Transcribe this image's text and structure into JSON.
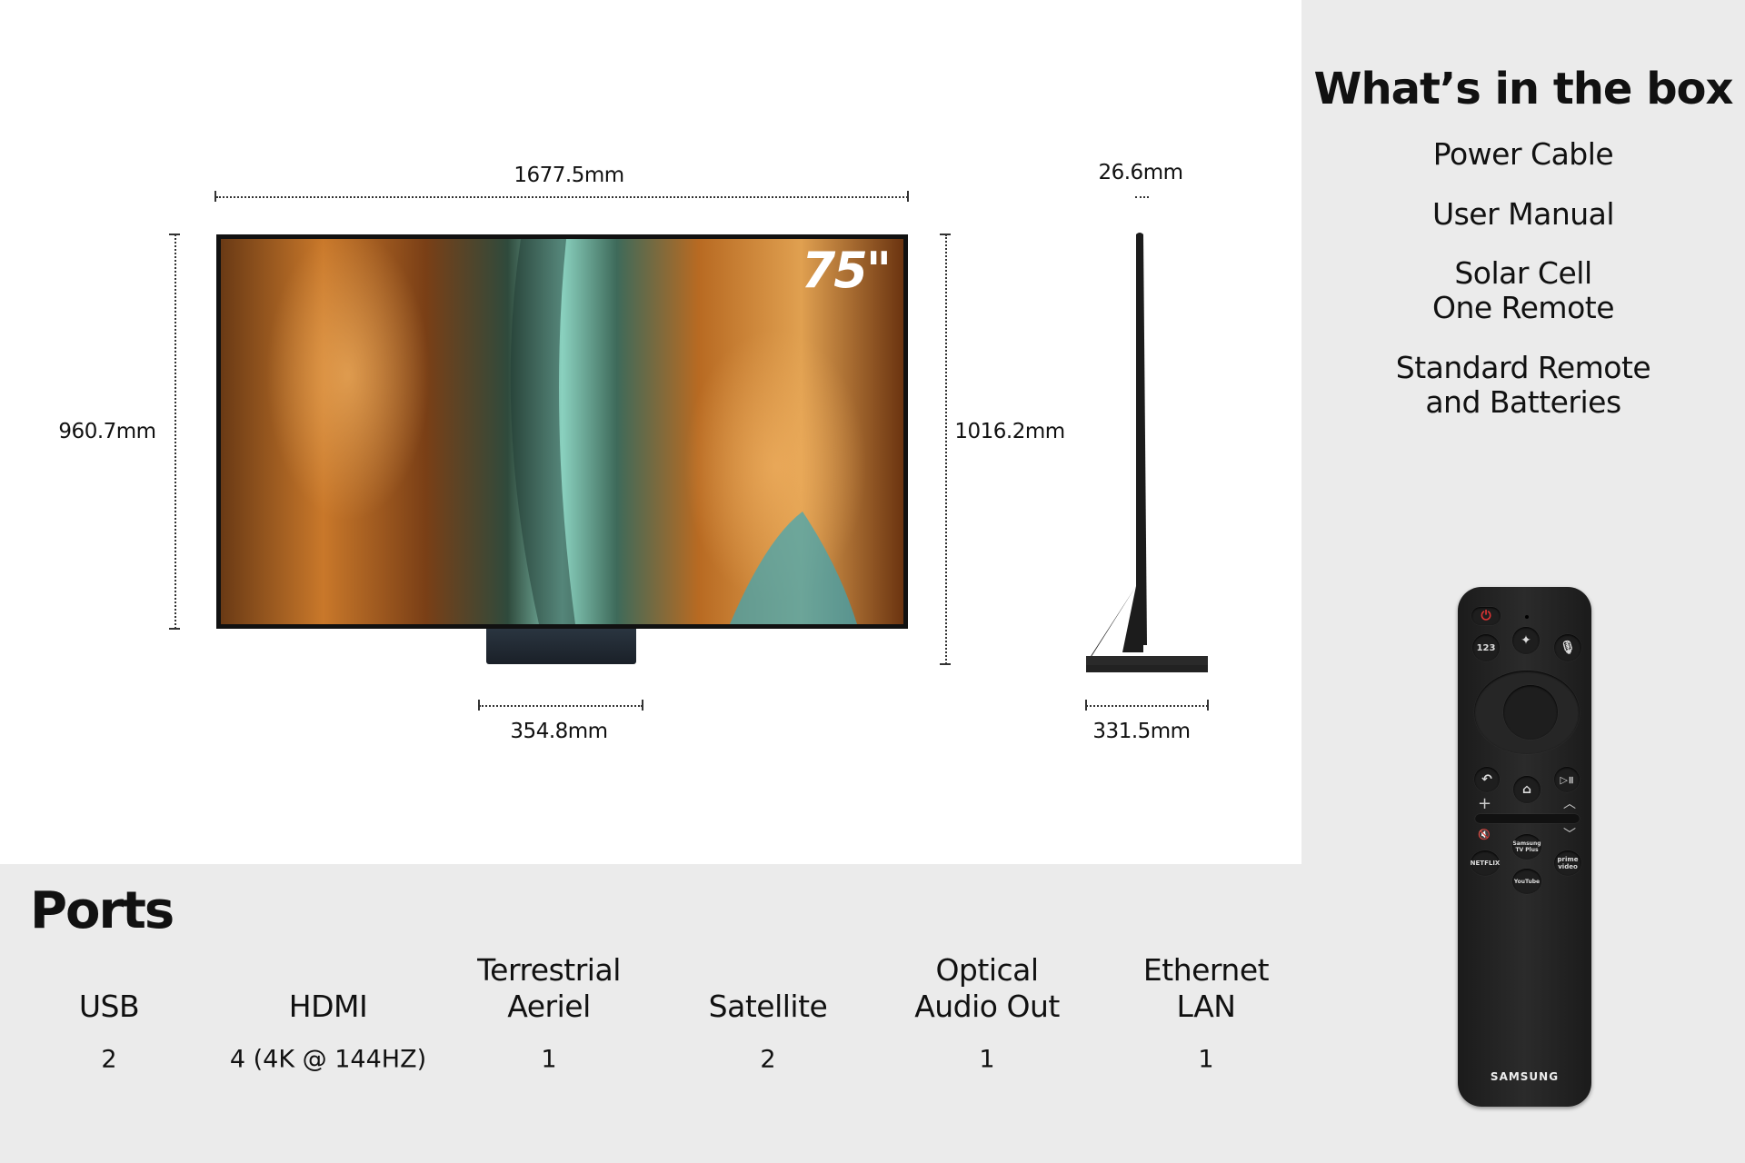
{
  "dimensions": {
    "width": "1677.5mm",
    "height_panel": "960.7mm",
    "height_with_stand": "1016.2mm",
    "stand_width": "354.8mm",
    "depth_panel": "26.6mm",
    "stand_depth": "331.5mm"
  },
  "tv": {
    "size_badge": "75\""
  },
  "box": {
    "title": "What’s in the box",
    "items": [
      [
        "Power Cable"
      ],
      [
        "User Manual"
      ],
      [
        "Solar Cell",
        "One Remote"
      ],
      [
        "Standard Remote",
        "and Batteries"
      ]
    ]
  },
  "ports": {
    "title": "Ports",
    "columns": [
      {
        "label": [
          "USB"
        ],
        "value": "2"
      },
      {
        "label": [
          "HDMI"
        ],
        "value": "4 (4K @ 144HZ)"
      },
      {
        "label": [
          "Terrestrial",
          "Aeriel"
        ],
        "value": "1"
      },
      {
        "label": [
          "Satellite"
        ],
        "value": "2"
      },
      {
        "label": [
          "Optical",
          "Audio Out"
        ],
        "value": "1"
      },
      {
        "label": [
          "Ethernet",
          "LAN"
        ],
        "value": "1"
      }
    ]
  },
  "remote": {
    "brand": "SAMSUNG",
    "buttons": {
      "num": "123",
      "tvplus": "Samsung TV Plus",
      "netflix": "NETFLIX",
      "prime": "prime video",
      "youtube": "YouTube"
    }
  },
  "colors": {
    "panel_bg": "#ebebeb",
    "content_bg": "#ffffff",
    "text": "#111111"
  }
}
